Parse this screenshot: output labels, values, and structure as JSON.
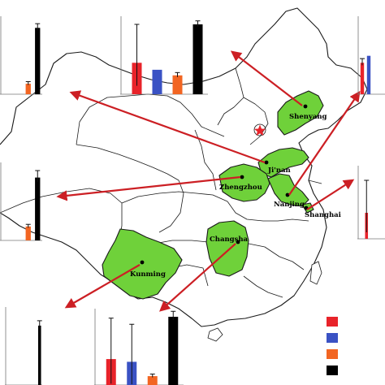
{
  "colors": {
    "province_highlight": "#6fd13a",
    "province_outline": "#1a1a1a",
    "arrow": "#cc1f24",
    "bar_series": [
      "#e8232a",
      "#3a52c4",
      "#f26522",
      "#000000"
    ],
    "legend_swatches": [
      "#e8232a",
      "#3a52c4",
      "#f26522",
      "#000000"
    ]
  },
  "map": {
    "capital_marker": "red-star-icon",
    "cities": [
      {
        "id": "shenyang",
        "label": "Shenyang"
      },
      {
        "id": "jinan",
        "label": "Ji'nan"
      },
      {
        "id": "zhengzhou",
        "label": "Zhengzhou"
      },
      {
        "id": "nanjing",
        "label": "Nanjing"
      },
      {
        "id": "shanghai",
        "label": "Shanghai"
      },
      {
        "id": "changsha",
        "label": "Changsha"
      },
      {
        "id": "kunming",
        "label": "Kunming"
      }
    ]
  },
  "chart_data": [
    {
      "type": "bar",
      "city": "Ji'nan",
      "series_colors": [
        "#e8232a",
        "#3a52c4",
        "#f26522",
        "#000000"
      ],
      "values": [
        null,
        null,
        0.15,
        0.95
      ],
      "errors": [
        null,
        null,
        0.03,
        0.06
      ]
    },
    {
      "type": "bar",
      "city": "Zhengzhou",
      "series_colors": [
        "#e8232a",
        "#3a52c4",
        "#f26522",
        "#000000"
      ],
      "values": [
        0.45,
        0.35,
        0.27,
        1.0
      ],
      "errors": [
        0.55,
        0.0,
        0.04,
        0.05
      ]
    },
    {
      "type": "bar",
      "city": "Shenyang",
      "series_colors": [
        "#e8232a",
        "#3a52c4",
        "#f26522",
        "#000000"
      ],
      "values": [
        0.45,
        0.55,
        null,
        null
      ],
      "errors": [
        0.06,
        0.0,
        null,
        null
      ]
    },
    {
      "type": "bar",
      "city": "Kunming",
      "series_colors": [
        "#e8232a",
        "#3a52c4",
        "#f26522",
        "#000000"
      ],
      "values": [
        null,
        null,
        0.2,
        0.9
      ],
      "errors": [
        null,
        null,
        0.03,
        0.1
      ]
    },
    {
      "type": "bar",
      "city": "Shanghai",
      "series_colors": [
        "#e8232a",
        "#3a52c4",
        "#f26522",
        "#000000"
      ],
      "values": [
        0.4,
        null,
        null,
        null
      ],
      "errors": [
        0.5,
        null,
        null,
        null
      ]
    },
    {
      "type": "bar",
      "city": "Changsha",
      "series_colors": [
        "#e8232a",
        "#3a52c4",
        "#f26522",
        "#000000"
      ],
      "values": [
        0.38,
        0.34,
        0.13,
        1.0
      ],
      "errors": [
        0.6,
        0.55,
        0.03,
        0.08
      ]
    },
    {
      "type": "bar",
      "city": "Nanjing",
      "series_colors": [
        "#e8232a",
        "#3a52c4",
        "#f26522",
        "#000000"
      ],
      "values": [
        null,
        null,
        null,
        0.85
      ],
      "errors": [
        null,
        null,
        null,
        0.07
      ]
    }
  ]
}
